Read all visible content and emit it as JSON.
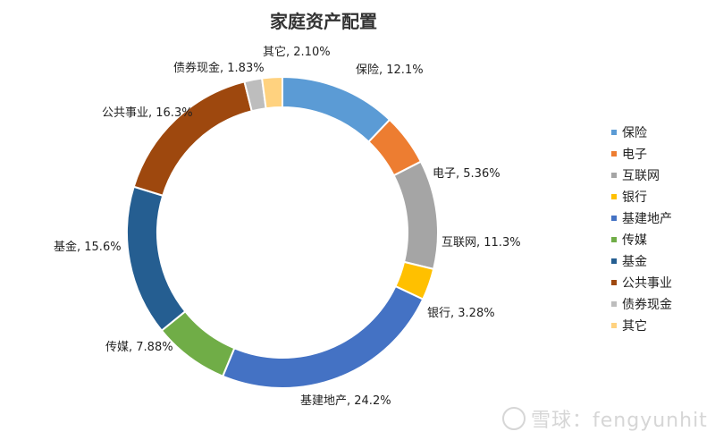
{
  "chart_data": {
    "type": "pie",
    "title": "家庭资产配置",
    "donut": true,
    "legend": "right",
    "slices": [
      {
        "name": "保险",
        "value": 12.1,
        "label": "保险, 12.1%",
        "color": "#5B9BD5"
      },
      {
        "name": "电子",
        "value": 5.36,
        "label": "电子, 5.36%",
        "color": "#ED7D31"
      },
      {
        "name": "互联网",
        "value": 11.3,
        "label": "互联网, 11.3%",
        "color": "#A5A5A5"
      },
      {
        "name": "银行",
        "value": 3.28,
        "label": "银行, 3.28%",
        "color": "#FFC000"
      },
      {
        "name": "基建地产",
        "value": 24.2,
        "label": "基建地产, 24.2%",
        "color": "#4472C4"
      },
      {
        "name": "传媒",
        "value": 7.88,
        "label": "传媒, 7.88%",
        "color": "#70AD47"
      },
      {
        "name": "基金",
        "value": 15.6,
        "label": "基金, 15.6%",
        "color": "#255E91"
      },
      {
        "name": "公共事业",
        "value": 16.3,
        "label": "公共事业, 16.3%",
        "color": "#9E480E"
      },
      {
        "name": "债券现金",
        "value": 1.83,
        "label": "债券现金, 1.83%",
        "color": "#BDBDBD"
      },
      {
        "name": "其它",
        "value": 2.1,
        "label": "其它, 2.10%",
        "color": "#FFD27F"
      }
    ]
  },
  "watermark": {
    "brand": "雪球",
    "separator": "：",
    "user": "fengyunhit"
  }
}
